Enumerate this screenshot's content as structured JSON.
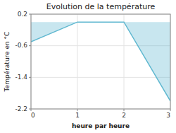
{
  "chart_data": {
    "type": "area",
    "title": "Evolution de la température",
    "xlabel": "heure par heure",
    "ylabel": "Température en °C",
    "x": [
      0,
      1,
      2,
      3
    ],
    "values": [
      -0.5,
      0.0,
      0.0,
      -2.0
    ],
    "color": "#60b8d0",
    "xlim": [
      0,
      3
    ],
    "ylim": [
      -2.2,
      0.2
    ],
    "xticks": [
      0,
      1,
      2,
      3
    ],
    "yticks": [
      0.2,
      -0.6,
      -1.4,
      -2.2
    ],
    "grid": true
  }
}
